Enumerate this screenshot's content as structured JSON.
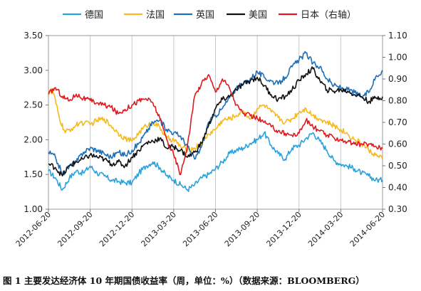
{
  "caption": "图 1 主要发达经济体 10 年期国债收益率（周，单位：%）（数据来源：BLOOMBERG）",
  "chart_data": {
    "type": "line",
    "title": "",
    "xlabel": "",
    "ylabel": "",
    "y_left_lim": [
      1.0,
      3.5
    ],
    "y_left_ticks": [
      "3.50",
      "3.00",
      "2.50",
      "2.00",
      "1.50",
      "1.00"
    ],
    "y_right_lim": [
      0.3,
      1.1
    ],
    "y_right_ticks": [
      "1.10",
      "1.00",
      "0.90",
      "0.80",
      "0.70",
      "0.60",
      "0.50",
      "0.40",
      "0.30"
    ],
    "x_tick_labels": [
      "2012-06-20",
      "2012-09-20",
      "2012-12-20",
      "2013-03-20",
      "2013-06-20",
      "2013-09-20",
      "2013-12-20",
      "2014-03-20",
      "2014-06-20"
    ],
    "x_tick_index": [
      0,
      3,
      6,
      9,
      12,
      15,
      18,
      21,
      24
    ],
    "grid": "vertical",
    "legend_position": "top",
    "series": [
      {
        "name": "德国",
        "axis": "left",
        "color": "#29a3dd",
        "points": [
          [
            0,
            1.55
          ],
          [
            0.5,
            1.45
          ],
          [
            1,
            1.28
          ],
          [
            1.5,
            1.45
          ],
          [
            2,
            1.55
          ],
          [
            2.5,
            1.52
          ],
          [
            3,
            1.62
          ],
          [
            3.5,
            1.52
          ],
          [
            4,
            1.48
          ],
          [
            4.5,
            1.42
          ],
          [
            5,
            1.4
          ],
          [
            5.5,
            1.38
          ],
          [
            6,
            1.38
          ],
          [
            6.5,
            1.52
          ],
          [
            7,
            1.62
          ],
          [
            7.5,
            1.68
          ],
          [
            8,
            1.6
          ],
          [
            8.5,
            1.48
          ],
          [
            9,
            1.42
          ],
          [
            9.5,
            1.35
          ],
          [
            10,
            1.28
          ],
          [
            10.5,
            1.35
          ],
          [
            11,
            1.45
          ],
          [
            11.5,
            1.5
          ],
          [
            12,
            1.58
          ],
          [
            12.5,
            1.68
          ],
          [
            13,
            1.8
          ],
          [
            13.5,
            1.85
          ],
          [
            14,
            1.88
          ],
          [
            14.5,
            1.95
          ],
          [
            15,
            2.0
          ],
          [
            15.5,
            2.1
          ],
          [
            16,
            1.92
          ],
          [
            16.5,
            1.8
          ],
          [
            17,
            1.72
          ],
          [
            17.5,
            1.88
          ],
          [
            18,
            1.92
          ],
          [
            18.5,
            2.02
          ],
          [
            19,
            2.1
          ],
          [
            19.5,
            1.98
          ],
          [
            20,
            1.85
          ],
          [
            20.5,
            1.7
          ],
          [
            21,
            1.65
          ],
          [
            21.5,
            1.62
          ],
          [
            22,
            1.58
          ],
          [
            22.5,
            1.52
          ],
          [
            23,
            1.48
          ],
          [
            23.5,
            1.42
          ],
          [
            24,
            1.42
          ]
        ]
      },
      {
        "name": "法国",
        "axis": "left",
        "color": "#f6b91e",
        "points": [
          [
            0,
            2.68
          ],
          [
            0.3,
            2.72
          ],
          [
            0.8,
            2.3
          ],
          [
            1.2,
            2.1
          ],
          [
            1.8,
            2.18
          ],
          [
            2.3,
            2.25
          ],
          [
            3,
            2.22
          ],
          [
            3.5,
            2.28
          ],
          [
            4,
            2.3
          ],
          [
            4.5,
            2.2
          ],
          [
            5,
            2.1
          ],
          [
            5.5,
            2.02
          ],
          [
            6,
            1.98
          ],
          [
            6.5,
            2.1
          ],
          [
            7,
            2.2
          ],
          [
            7.5,
            2.25
          ],
          [
            8,
            2.18
          ],
          [
            8.5,
            2.02
          ],
          [
            9,
            2.0
          ],
          [
            9.5,
            1.9
          ],
          [
            10,
            1.85
          ],
          [
            10.5,
            1.88
          ],
          [
            11,
            1.95
          ],
          [
            11.5,
            2.08
          ],
          [
            12,
            2.15
          ],
          [
            12.5,
            2.28
          ],
          [
            13,
            2.3
          ],
          [
            13.5,
            2.35
          ],
          [
            14,
            2.42
          ],
          [
            14.5,
            2.3
          ],
          [
            15,
            2.45
          ],
          [
            15.5,
            2.5
          ],
          [
            16,
            2.4
          ],
          [
            16.5,
            2.32
          ],
          [
            17,
            2.25
          ],
          [
            17.5,
            2.3
          ],
          [
            18,
            2.4
          ],
          [
            18.5,
            2.45
          ],
          [
            19,
            2.35
          ],
          [
            19.5,
            2.3
          ],
          [
            20,
            2.25
          ],
          [
            20.5,
            2.2
          ],
          [
            21,
            2.15
          ],
          [
            21.5,
            2.08
          ],
          [
            22,
            2.0
          ],
          [
            22.5,
            1.95
          ],
          [
            23,
            1.85
          ],
          [
            23.5,
            1.78
          ],
          [
            24,
            1.72
          ]
        ]
      },
      {
        "name": "英国",
        "axis": "left",
        "color": "#1f6fb7",
        "points": [
          [
            0,
            1.82
          ],
          [
            0.5,
            1.75
          ],
          [
            1,
            1.5
          ],
          [
            1.5,
            1.62
          ],
          [
            2,
            1.68
          ],
          [
            2.5,
            1.82
          ],
          [
            3,
            1.88
          ],
          [
            3.5,
            1.85
          ],
          [
            4,
            1.8
          ],
          [
            4.5,
            1.75
          ],
          [
            5,
            1.82
          ],
          [
            5.5,
            1.78
          ],
          [
            6,
            1.85
          ],
          [
            6.5,
            1.95
          ],
          [
            7,
            2.1
          ],
          [
            7.5,
            2.25
          ],
          [
            8,
            2.28
          ],
          [
            8.5,
            2.15
          ],
          [
            9,
            2.1
          ],
          [
            9.5,
            2.05
          ],
          [
            10,
            1.9
          ],
          [
            10.5,
            1.72
          ],
          [
            11,
            1.9
          ],
          [
            11.5,
            2.25
          ],
          [
            12,
            2.35
          ],
          [
            12.5,
            2.45
          ],
          [
            13,
            2.6
          ],
          [
            13.5,
            2.75
          ],
          [
            14,
            2.8
          ],
          [
            14.5,
            2.88
          ],
          [
            15,
            2.98
          ],
          [
            15.5,
            2.9
          ],
          [
            16,
            2.85
          ],
          [
            16.5,
            2.8
          ],
          [
            17,
            2.9
          ],
          [
            17.5,
            3.05
          ],
          [
            18,
            3.15
          ],
          [
            18.5,
            3.25
          ],
          [
            19,
            3.1
          ],
          [
            19.5,
            3.05
          ],
          [
            20,
            2.88
          ],
          [
            20.5,
            2.78
          ],
          [
            21,
            2.75
          ],
          [
            21.5,
            2.72
          ],
          [
            22,
            2.68
          ],
          [
            22.5,
            2.62
          ],
          [
            23,
            2.68
          ],
          [
            23.5,
            2.9
          ],
          [
            24,
            3.0
          ]
        ]
      },
      {
        "name": "美国",
        "axis": "left",
        "color": "#111111",
        "points": [
          [
            0,
            1.65
          ],
          [
            0.5,
            1.6
          ],
          [
            1,
            1.48
          ],
          [
            1.5,
            1.62
          ],
          [
            2,
            1.68
          ],
          [
            2.5,
            1.72
          ],
          [
            3,
            1.78
          ],
          [
            3.5,
            1.75
          ],
          [
            4,
            1.72
          ],
          [
            4.5,
            1.65
          ],
          [
            5,
            1.68
          ],
          [
            5.5,
            1.62
          ],
          [
            6,
            1.75
          ],
          [
            6.5,
            1.85
          ],
          [
            7,
            1.95
          ],
          [
            7.5,
            1.98
          ],
          [
            8,
            2.02
          ],
          [
            8.5,
            1.88
          ],
          [
            9,
            1.9
          ],
          [
            9.5,
            1.85
          ],
          [
            10,
            1.75
          ],
          [
            10.5,
            1.82
          ],
          [
            11,
            1.95
          ],
          [
            11.5,
            2.2
          ],
          [
            12,
            2.45
          ],
          [
            12.5,
            2.58
          ],
          [
            13,
            2.62
          ],
          [
            13.5,
            2.72
          ],
          [
            14,
            2.8
          ],
          [
            14.5,
            2.85
          ],
          [
            15,
            2.9
          ],
          [
            15.5,
            2.78
          ],
          [
            16,
            2.65
          ],
          [
            16.5,
            2.58
          ],
          [
            17,
            2.62
          ],
          [
            17.5,
            2.72
          ],
          [
            18,
            2.85
          ],
          [
            18.5,
            2.95
          ],
          [
            19,
            3.02
          ],
          [
            19.5,
            2.85
          ],
          [
            20,
            2.72
          ],
          [
            20.5,
            2.7
          ],
          [
            21,
            2.72
          ],
          [
            21.5,
            2.7
          ],
          [
            22,
            2.65
          ],
          [
            22.5,
            2.62
          ],
          [
            23,
            2.55
          ],
          [
            23.5,
            2.6
          ],
          [
            24,
            2.62
          ]
        ]
      },
      {
        "name": "日本（右轴）",
        "axis": "right",
        "color": "#e0191f",
        "points": [
          [
            0,
            0.83
          ],
          [
            0.5,
            0.86
          ],
          [
            1,
            0.82
          ],
          [
            1.5,
            0.8
          ],
          [
            2,
            0.83
          ],
          [
            2.5,
            0.81
          ],
          [
            3,
            0.8
          ],
          [
            3.5,
            0.79
          ],
          [
            4,
            0.78
          ],
          [
            4.5,
            0.77
          ],
          [
            5,
            0.74
          ],
          [
            5.5,
            0.76
          ],
          [
            6,
            0.78
          ],
          [
            6.5,
            0.8
          ],
          [
            7,
            0.81
          ],
          [
            7.5,
            0.79
          ],
          [
            8,
            0.72
          ],
          [
            8.5,
            0.62
          ],
          [
            9,
            0.55
          ],
          [
            9.5,
            0.46
          ],
          [
            10,
            0.6
          ],
          [
            10.5,
            0.82
          ],
          [
            11,
            0.88
          ],
          [
            11.5,
            0.92
          ],
          [
            12,
            0.84
          ],
          [
            12.5,
            0.9
          ],
          [
            13,
            0.86
          ],
          [
            13.5,
            0.78
          ],
          [
            14,
            0.74
          ],
          [
            14.5,
            0.73
          ],
          [
            15,
            0.72
          ],
          [
            15.5,
            0.7
          ],
          [
            16,
            0.68
          ],
          [
            16.5,
            0.66
          ],
          [
            17,
            0.65
          ],
          [
            17.5,
            0.64
          ],
          [
            18,
            0.65
          ],
          [
            18.5,
            0.71
          ],
          [
            19,
            0.68
          ],
          [
            19.5,
            0.66
          ],
          [
            20,
            0.64
          ],
          [
            20.5,
            0.63
          ],
          [
            21,
            0.62
          ],
          [
            21.5,
            0.61
          ],
          [
            22,
            0.6
          ],
          [
            22.5,
            0.6
          ],
          [
            23,
            0.6
          ],
          [
            23.5,
            0.59
          ],
          [
            24,
            0.58
          ]
        ]
      }
    ]
  }
}
